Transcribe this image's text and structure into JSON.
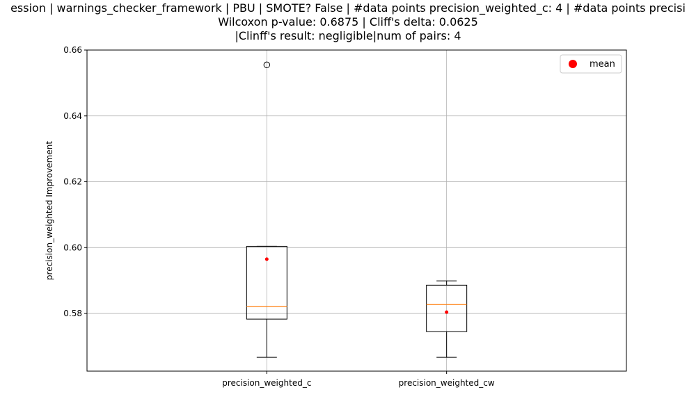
{
  "chart_data": {
    "type": "boxplot",
    "title_lines": [
      "ession | warnings_checker_framework | PBU | SMOTE? False | #data points precision_weighted_c: 4 | #data points precisi",
      "Wilcoxon p-value: 0.6875 | Cliff's delta: 0.0625",
      "|Clinff's result: negligible|num of pairs: 4"
    ],
    "xlabel": "",
    "ylabel": "precision_weighted Improvement",
    "ylim": [
      0.5625,
      0.66
    ],
    "yticks": [
      0.58,
      0.6,
      0.62,
      0.64,
      0.66
    ],
    "ytick_labels": [
      "0.58",
      "0.60",
      "0.62",
      "0.64",
      "0.66"
    ],
    "grid": true,
    "legend": {
      "position": "top-right",
      "entries": [
        "mean"
      ]
    },
    "colors": {
      "box": "#000000",
      "median": "#ff7f0e",
      "mean": "#ff0000",
      "grid": "#b0b0b0"
    },
    "categories": [
      "precision_weighted_c",
      "precision_weighted_cw"
    ],
    "boxes": [
      {
        "name": "precision_weighted_c",
        "whisker_low": 0.5667,
        "q1": 0.5783,
        "median": 0.5821,
        "q3": 0.6004,
        "whisker_high": 0.6004,
        "mean": 0.5965,
        "outliers": [
          0.6555
        ]
      },
      {
        "name": "precision_weighted_cw",
        "whisker_low": 0.5667,
        "q1": 0.5745,
        "median": 0.5827,
        "q3": 0.5886,
        "whisker_high": 0.5899,
        "mean": 0.5804,
        "outliers": []
      }
    ]
  }
}
